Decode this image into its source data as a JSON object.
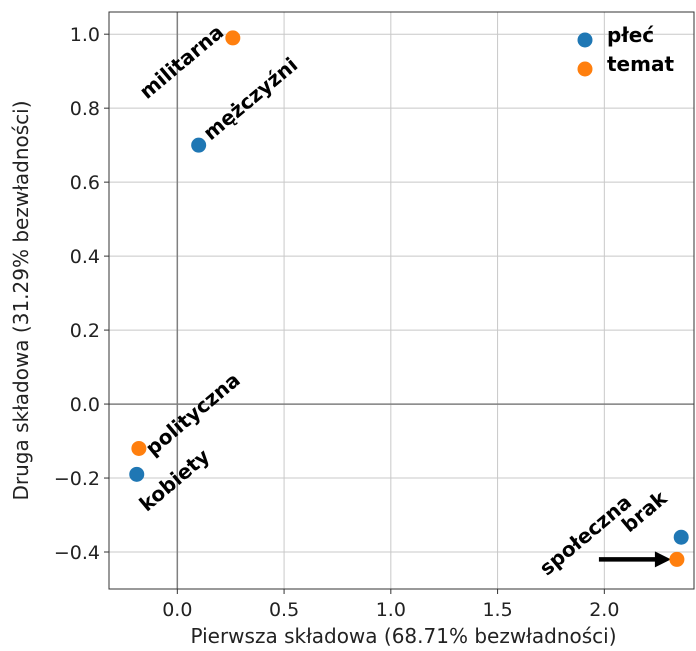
{
  "chart_data": {
    "type": "scatter",
    "xlabel": "Pierwsza składowa (68.71% bezwładności)",
    "ylabel": "Druga składowa (31.29% bezwładności)",
    "xlim": [
      -0.32,
      2.42
    ],
    "ylim": [
      -0.5,
      1.06
    ],
    "xticks": [
      0.0,
      0.5,
      1.0,
      1.5,
      2.0
    ],
    "xtick_labels": [
      "0.0",
      "0.5",
      "1.0",
      "1.5",
      "2.0"
    ],
    "yticks": [
      -0.4,
      -0.2,
      0.0,
      0.2,
      0.4,
      0.6,
      0.8,
      1.0
    ],
    "ytick_labels": [
      "−0.4",
      "−0.2",
      "0.0",
      "0.2",
      "0.4",
      "0.6",
      "0.8",
      "1.0"
    ],
    "grid": true,
    "legend_position": "top-right",
    "series": [
      {
        "name": "płeć",
        "color": "#1f77b4",
        "points": [
          {
            "label": "mężczyźni",
            "x": 0.1,
            "y": 0.7
          },
          {
            "label": "kobiety",
            "x": -0.19,
            "y": -0.19
          },
          {
            "label": "brak",
            "x": 2.36,
            "y": -0.36
          }
        ]
      },
      {
        "name": "temat",
        "color": "#ff7f0e",
        "points": [
          {
            "label": "militarna",
            "x": 0.26,
            "y": 0.99
          },
          {
            "label": "polityczna",
            "x": -0.18,
            "y": -0.12
          },
          {
            "label": "społeczna",
            "x": 2.34,
            "y": -0.42
          }
        ]
      }
    ]
  }
}
